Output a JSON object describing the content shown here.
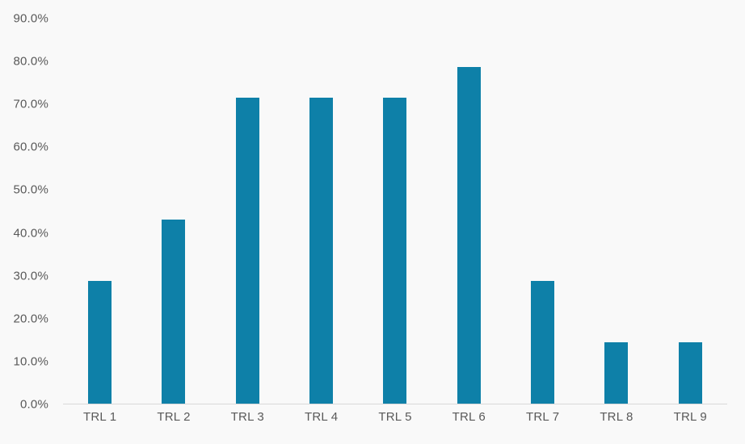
{
  "chart_data": {
    "type": "bar",
    "title": "",
    "xlabel": "",
    "ylabel": "",
    "categories": [
      "TRL 1",
      "TRL 2",
      "TRL 3",
      "TRL 4",
      "TRL 5",
      "TRL 6",
      "TRL 7",
      "TRL 8",
      "TRL 9"
    ],
    "values": [
      28.6,
      42.9,
      71.4,
      71.4,
      71.4,
      78.6,
      28.6,
      14.3,
      14.3
    ],
    "value_unit": "%",
    "ylim": [
      0,
      90
    ],
    "ytick_step": 10,
    "ytick_labels": [
      "0.0%",
      "10.0%",
      "20.0%",
      "30.0%",
      "40.0%",
      "50.0%",
      "60.0%",
      "70.0%",
      "80.0%",
      "90.0%"
    ],
    "grid": false,
    "legend": "none",
    "colors": {
      "bar": "#0e80a8",
      "background": "#f9f9f9",
      "axis_line": "#d9d9d9",
      "label_text": "#595959"
    }
  }
}
